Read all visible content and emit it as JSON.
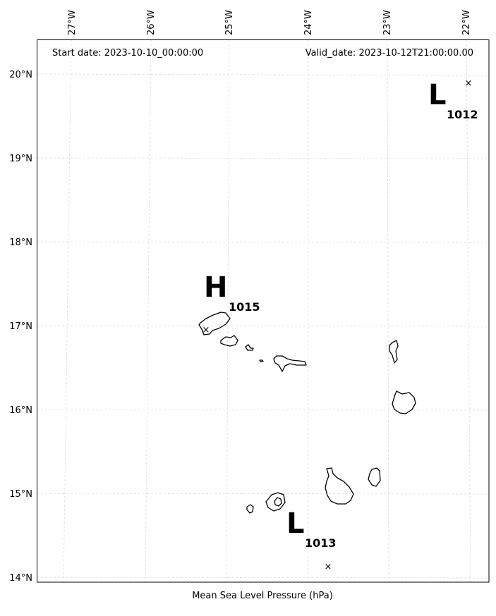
{
  "header": {
    "start_date": "Start date: 2023-10-10_00:00:00",
    "valid_date": "Valid_date: 2023-10-12T21:00:00.00"
  },
  "caption": "Mean Sea Level Pressure (hPa)",
  "longitude_labels": [
    "27°W",
    "26°W",
    "25°W",
    "24°W",
    "23°W",
    "22°W"
  ],
  "latitude_labels": [
    "20°N",
    "19°N",
    "18°N",
    "17°N",
    "16°N",
    "15°N",
    "14°N"
  ],
  "pressure_centers": [
    {
      "kind": "low",
      "letter": "L",
      "value": "1012"
    },
    {
      "kind": "high",
      "letter": "H",
      "value": "1015"
    },
    {
      "kind": "low",
      "letter": "L",
      "value": "1013"
    }
  ],
  "center_marker_symbol": "×",
  "colors": {
    "coastline": "#000000",
    "gridlines": "#d9d9d9",
    "frame": "#000000"
  }
}
